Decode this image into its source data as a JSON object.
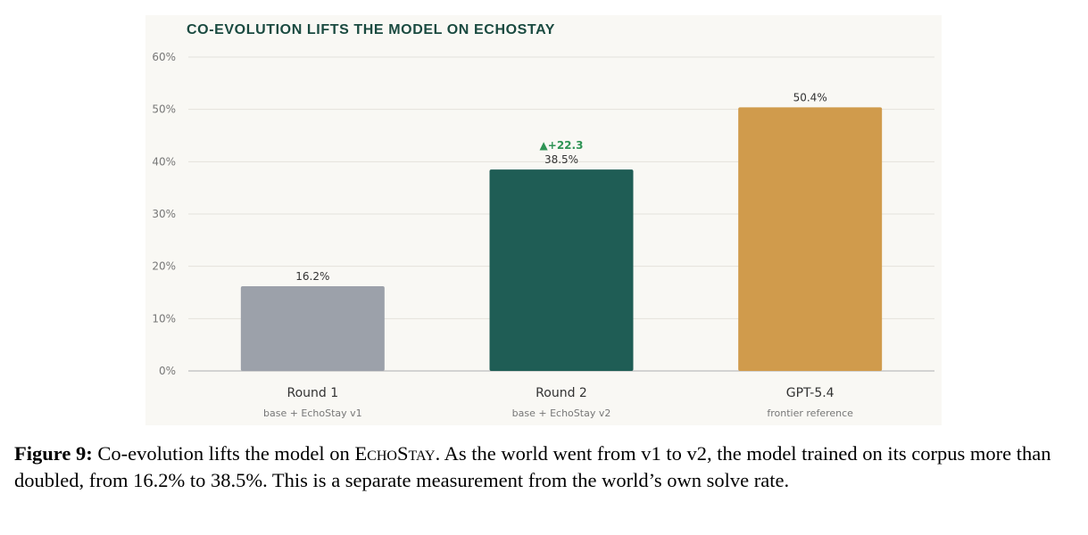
{
  "chart_data": {
    "type": "bar",
    "title": "CO-EVOLUTION LIFTS THE MODEL ON ECHOSTAY",
    "xlabel": "",
    "ylabel": "",
    "ylim": [
      0,
      60
    ],
    "yticks": [
      0,
      10,
      20,
      30,
      40,
      50,
      60
    ],
    "ytick_labels": [
      "0%",
      "10%",
      "20%",
      "30%",
      "40%",
      "50%",
      "60%"
    ],
    "grid": true,
    "legend": "none",
    "categories": [
      "Round 1",
      "Round 2",
      "GPT-5.4"
    ],
    "subtitles": [
      "base + EchoStay v1",
      "base + EchoStay v2",
      "frontier reference"
    ],
    "values": [
      16.2,
      38.5,
      50.4
    ],
    "value_labels": [
      "16.2%",
      "38.5%",
      "50.4%"
    ],
    "colors": [
      "#9ca1aa",
      "#1f5d55",
      "#d09b4c"
    ],
    "annotations": [
      {
        "category": "Round 2",
        "text": "▲+22.3",
        "color": "#2f9455"
      }
    ]
  },
  "colors": {
    "title": "#1a4a40",
    "grid": "#e4e2db",
    "baseline": "#bdbdbd"
  },
  "caption": {
    "label": "Figure 9:",
    "text_before": " Co-evolution lifts the model on ",
    "name_smallcaps": "EchoStay",
    "text_after": ". As the world went from v1 to v2, the model trained on its corpus more than doubled, from 16.2% to 38.5%. This is a separate measurement from the world’s own solve rate."
  }
}
